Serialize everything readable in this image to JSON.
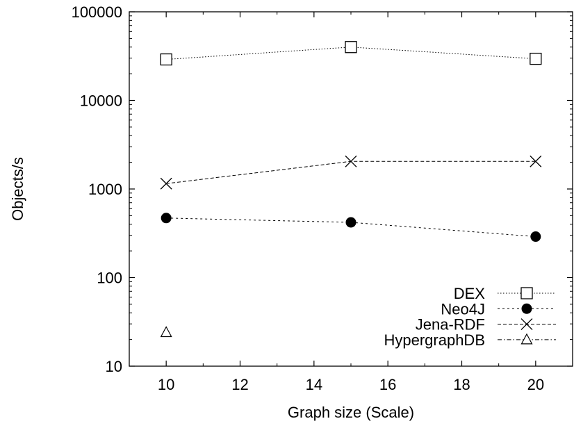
{
  "chart_data": {
    "type": "line",
    "title": "",
    "xlabel": "Graph size (Scale)",
    "ylabel": "Objects/s",
    "x_ticks": [
      "10",
      "12",
      "14",
      "16",
      "18",
      "20"
    ],
    "y_ticks": [
      "10",
      "100",
      "1000",
      "10000",
      "100000"
    ],
    "xlim": [
      9,
      21
    ],
    "ylim": [
      10,
      100000
    ],
    "y_scale": "log",
    "grid": false,
    "legend_position": "bottom-right",
    "series": [
      {
        "name": "DEX",
        "marker": "open-square",
        "line_style": "dotted",
        "x": [
          10,
          15,
          20
        ],
        "y": [
          29000,
          40000,
          29500
        ]
      },
      {
        "name": "Neo4J",
        "marker": "filled-circle",
        "line_style": "short-dash",
        "x": [
          10,
          15,
          20
        ],
        "y": [
          470,
          420,
          290
        ]
      },
      {
        "name": "Jena-RDF",
        "marker": "cross",
        "line_style": "dashed",
        "x": [
          10,
          15,
          20
        ],
        "y": [
          1150,
          2050,
          2050
        ]
      },
      {
        "name": "HypergraphDB",
        "marker": "open-triangle",
        "line_style": "dash-dot",
        "x": [
          10
        ],
        "y": [
          24
        ]
      }
    ]
  }
}
